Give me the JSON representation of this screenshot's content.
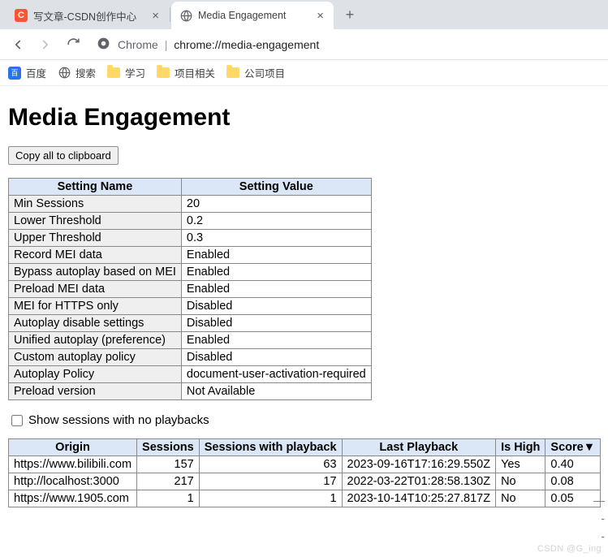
{
  "browser": {
    "tabs": [
      {
        "title": "写文章-CSDN创作中心",
        "favicon_bg": "#fc5531",
        "favicon_fg": "#ffffff",
        "favicon_text": "C",
        "active": false
      },
      {
        "title": "Media Engagement",
        "favicon_type": "globe",
        "active": true
      }
    ],
    "omnibox": {
      "scheme_label": "Chrome",
      "url_path": "chrome://media-engagement"
    },
    "bookmarks": [
      {
        "label": "百度",
        "icon_type": "baidu",
        "icon_bg": "#2a72ec",
        "icon_fg": "#ffffff"
      },
      {
        "label": "搜索",
        "icon_type": "globe"
      },
      {
        "label": "学习",
        "icon_type": "folder"
      },
      {
        "label": "项目相关",
        "icon_type": "folder"
      },
      {
        "label": "公司项目",
        "icon_type": "folder"
      }
    ]
  },
  "page": {
    "title": "Media Engagement",
    "copy_button": "Copy all to clipboard",
    "settings": {
      "headers": [
        "Setting Name",
        "Setting Value"
      ],
      "rows": [
        [
          "Min Sessions",
          "20"
        ],
        [
          "Lower Threshold",
          "0.2"
        ],
        [
          "Upper Threshold",
          "0.3"
        ],
        [
          "Record MEI data",
          "Enabled"
        ],
        [
          "Bypass autoplay based on MEI",
          "Enabled"
        ],
        [
          "Preload MEI data",
          "Enabled"
        ],
        [
          "MEI for HTTPS only",
          "Disabled"
        ],
        [
          "Autoplay disable settings",
          "Disabled"
        ],
        [
          "Unified autoplay (preference)",
          "Enabled"
        ],
        [
          "Custom autoplay policy",
          "Disabled"
        ],
        [
          "Autoplay Policy",
          "document-user-activation-required"
        ],
        [
          "Preload version",
          "Not Available"
        ]
      ]
    },
    "checkbox_label": "Show sessions with no playbacks",
    "checkbox_checked": false,
    "sessions": {
      "headers": [
        "Origin",
        "Sessions",
        "Sessions with playback",
        "Last Playback",
        "Is High",
        "Score▼"
      ],
      "rows": [
        [
          "https://www.bilibili.com",
          "157",
          "63",
          "2023-09-16T17:16:29.550Z",
          "Yes",
          "0.40"
        ],
        [
          "http://localhost:3000",
          "217",
          "17",
          "2022-03-22T01:28:58.130Z",
          "No",
          "0.08"
        ],
        [
          "https://www.1905.com",
          "1",
          "1",
          "2023-10-14T10:25:27.817Z",
          "No",
          "0.05"
        ]
      ],
      "numeric_cols": [
        1,
        2
      ]
    },
    "watermark": "CSDN @G_ing"
  },
  "style": {
    "th_bg": "#dbe7f6",
    "border_color": "#898989",
    "name_cell_bg": "#efefef"
  }
}
